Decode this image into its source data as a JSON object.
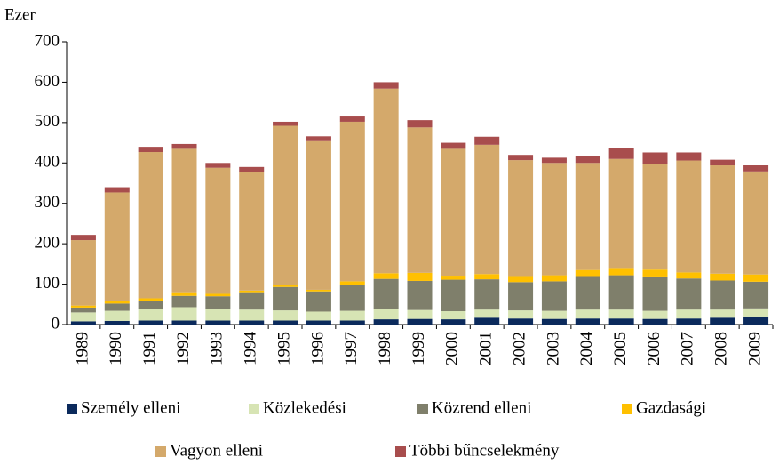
{
  "chart_data": {
    "type": "stacked_bar",
    "y_label": "Ezer",
    "categories": [
      "1989",
      "1990",
      "1991",
      "1992",
      "1993",
      "1994",
      "1995",
      "1996",
      "1997",
      "1998",
      "1999",
      "2000",
      "2001",
      "2002",
      "2003",
      "2004",
      "2005",
      "2006",
      "2007",
      "2008",
      "2009"
    ],
    "series": [
      {
        "name": "Személy elleni",
        "color": "#0b2a5c",
        "values": [
          8,
          9,
          10,
          10,
          10,
          10,
          10,
          10,
          10,
          13,
          14,
          13,
          17,
          15,
          14,
          15,
          15,
          14,
          15,
          17,
          20
        ]
      },
      {
        "name": "Közlekedési",
        "color": "#d7e4b4",
        "values": [
          22,
          25,
          28,
          33,
          28,
          27,
          25,
          22,
          24,
          25,
          22,
          20,
          20,
          20,
          20,
          22,
          22,
          20,
          22,
          20,
          20
        ]
      },
      {
        "name": "Közrend elleni",
        "color": "#7f7f6b",
        "values": [
          12,
          18,
          20,
          28,
          32,
          43,
          58,
          50,
          65,
          75,
          72,
          78,
          75,
          70,
          73,
          83,
          85,
          85,
          77,
          72,
          66
        ]
      },
      {
        "name": "Gazdasági",
        "color": "#ffc000",
        "values": [
          5,
          7,
          7,
          9,
          6,
          4,
          5,
          4,
          8,
          14,
          20,
          10,
          13,
          15,
          15,
          15,
          18,
          17,
          15,
          17,
          18
        ]
      },
      {
        "name": "Vagyon elleni",
        "color": "#d4a96b",
        "values": [
          162,
          268,
          362,
          355,
          312,
          293,
          394,
          368,
          395,
          457,
          360,
          314,
          320,
          287,
          278,
          265,
          270,
          262,
          277,
          268,
          255
        ]
      },
      {
        "name": "Többi bűncselekmény",
        "color": "#a84d4d",
        "values": [
          13,
          13,
          13,
          12,
          12,
          13,
          10,
          12,
          13,
          16,
          18,
          15,
          20,
          13,
          13,
          18,
          26,
          28,
          20,
          14,
          15
        ]
      }
    ],
    "ylim": [
      0,
      700
    ],
    "yticks": [
      0,
      100,
      200,
      300,
      400,
      500,
      600,
      700
    ],
    "grid": false
  }
}
